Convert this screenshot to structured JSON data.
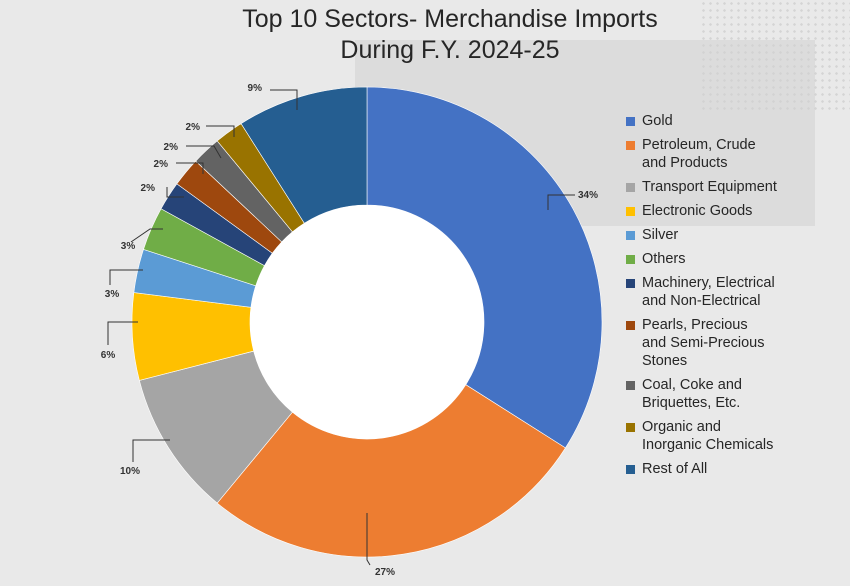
{
  "chart_data": {
    "type": "pie",
    "title": [
      "Top 10 Sectors- Merchandise Imports",
      "During F.Y. 2024-25"
    ],
    "categories": [
      "Gold",
      "Petroleum, Crude and Products",
      "Transport Equipment",
      "Electronic Goods",
      "Silver",
      "Others",
      "Machinery, Electrical and Non-Electrical",
      "Pearls, Precious and Semi-Precious Stones",
      "Coal, Coke and Briquettes, Etc.",
      "Organic and Inorganic Chemicals",
      "Rest of All"
    ],
    "chart_order": [
      "Gold",
      "Petroleum, Crude and Products",
      "Transport Equipment",
      "Electronic Goods",
      "Silver",
      "Others",
      "Machinery, Electrical and Non-Electrical",
      "Pearls, Precious and Semi-Precious Stones",
      "Coal, Coke and Briquettes, Etc.",
      "Organic and Inorganic Chemicals",
      "Rest of All"
    ],
    "values": [
      34,
      27,
      10,
      6,
      3,
      3,
      2,
      2,
      2,
      2,
      9
    ],
    "data_labels": [
      "34%",
      "27%",
      "10%",
      "6%",
      "3%",
      "3%",
      "2%",
      "2%",
      "2%",
      "2%",
      "9%"
    ],
    "colors": [
      "#4472c4",
      "#ed7d31",
      "#a5a5a5",
      "#ffc000",
      "#5b9bd5",
      "#70ad47",
      "#264478",
      "#9e480e",
      "#636363",
      "#997300",
      "#255e91"
    ],
    "donut": true,
    "legend_position": "right"
  },
  "legend": [
    {
      "lines": [
        "Gold"
      ],
      "color": "#4472c4"
    },
    {
      "lines": [
        "Petroleum, Crude",
        "and Products"
      ],
      "color": "#ed7d31"
    },
    {
      "lines": [
        "Transport Equipment"
      ],
      "color": "#a5a5a5"
    },
    {
      "lines": [
        "Electronic Goods"
      ],
      "color": "#ffc000"
    },
    {
      "lines": [
        "Silver"
      ],
      "color": "#5b9bd5"
    },
    {
      "lines": [
        "Others"
      ],
      "color": "#70ad47"
    },
    {
      "lines": [
        "Machinery, Electrical",
        "and Non-Electrical"
      ],
      "color": "#264478"
    },
    {
      "lines": [
        "Pearls, Precious",
        "and Semi-Precious",
        "Stones"
      ],
      "color": "#9e480e"
    },
    {
      "lines": [
        "Coal, Coke and",
        "Briquettes, Etc."
      ],
      "color": "#636363"
    },
    {
      "lines": [
        "Organic and",
        "Inorganic Chemicals"
      ],
      "color": "#997300"
    },
    {
      "lines": [
        "Rest of All"
      ],
      "color": "#255e91"
    }
  ]
}
